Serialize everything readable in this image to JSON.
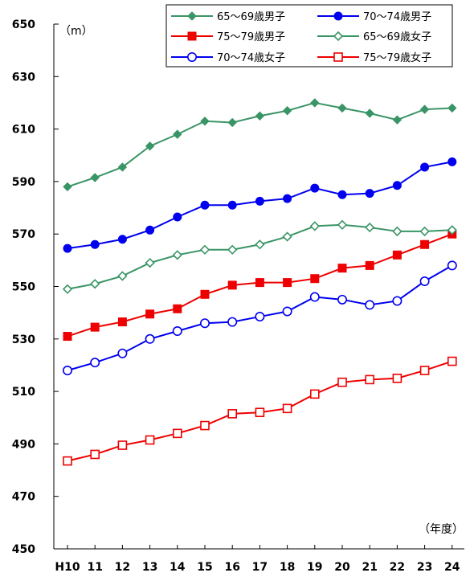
{
  "chart_data": {
    "type": "line",
    "y_unit_label": "（m）",
    "x_unit_label": "（年度）",
    "categories": [
      "H10",
      "11",
      "12",
      "13",
      "14",
      "15",
      "16",
      "17",
      "18",
      "19",
      "20",
      "21",
      "22",
      "23",
      "24"
    ],
    "ylim": [
      450,
      650
    ],
    "yticks": [
      450,
      470,
      490,
      510,
      530,
      550,
      570,
      590,
      610,
      630,
      650
    ],
    "grid": false,
    "legend_position": "top-right",
    "series": [
      {
        "name": "65～69歳男子",
        "color": "#3a9566",
        "marker": "diamond",
        "filled": true,
        "values": [
          588,
          591.5,
          595.5,
          603.5,
          608,
          613,
          612.5,
          615,
          617,
          620,
          618,
          616,
          613.5,
          617.5,
          618
        ]
      },
      {
        "name": "70～74歳男子",
        "color": "#0000ee",
        "marker": "circle",
        "filled": true,
        "values": [
          564.5,
          566,
          568,
          571.5,
          576.5,
          581,
          581,
          582.5,
          583.5,
          587.5,
          585,
          585.5,
          588.5,
          595.5,
          597.5
        ]
      },
      {
        "name": "75～79歳男子",
        "color": "#ee0000",
        "marker": "square",
        "filled": true,
        "values": [
          531,
          534.5,
          536.5,
          539.5,
          541.5,
          547,
          550.5,
          551.5,
          551.5,
          553,
          557,
          558,
          562,
          566,
          570
        ]
      },
      {
        "name": "65～69歳女子",
        "color": "#3a9566",
        "marker": "diamond",
        "filled": false,
        "values": [
          549,
          551,
          554,
          559,
          562,
          564,
          564,
          566,
          569,
          573,
          573.5,
          572.5,
          571,
          571,
          571.5
        ]
      },
      {
        "name": "70～74歳女子",
        "color": "#0000ee",
        "marker": "circle",
        "filled": false,
        "values": [
          518,
          521,
          524.5,
          530,
          533,
          536,
          536.5,
          538.5,
          540.5,
          546,
          545,
          543,
          544.5,
          552,
          558
        ]
      },
      {
        "name": "75～79歳女子",
        "color": "#ee0000",
        "marker": "square",
        "filled": false,
        "values": [
          483.5,
          486,
          489.5,
          491.5,
          494,
          497,
          501.5,
          502,
          503.5,
          509,
          513.5,
          514.5,
          515,
          518,
          521.5
        ]
      }
    ]
  }
}
